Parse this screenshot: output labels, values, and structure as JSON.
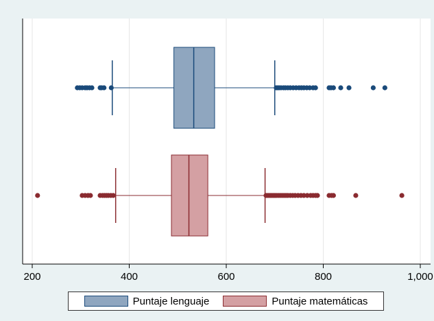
{
  "chart_data": {
    "type": "boxplot",
    "orientation": "horizontal",
    "title": "",
    "xlabel": "",
    "ylabel": "",
    "xlim": [
      180,
      1010
    ],
    "xticks": [
      200,
      400,
      600,
      800,
      1000
    ],
    "xtick_labels": [
      "200",
      "400",
      "600",
      "800",
      "1,000"
    ],
    "grid": "vertical",
    "legend_position": "bottom",
    "series": [
      {
        "name": "Puntaje lenguaje",
        "fill": "#8fa6bf",
        "stroke": "#1a4a7a",
        "whisker_low": 365,
        "q1": 492,
        "median": 533,
        "q3": 576,
        "whisker_high": 700,
        "outliers": [
          293,
          298,
          303,
          309,
          313,
          318,
          323,
          340,
          343,
          348,
          363,
          703,
          706,
          709,
          713,
          718,
          722,
          727,
          732,
          738,
          744,
          750,
          755,
          760,
          766,
          772,
          779,
          784,
          812,
          816,
          821,
          836,
          853,
          903,
          927
        ]
      },
      {
        "name": "Puntaje matemáticas",
        "fill": "#d4a0a3",
        "stroke": "#8a2b30",
        "whisker_low": 372,
        "q1": 487,
        "median": 523,
        "q3": 562,
        "whisker_high": 680,
        "outliers": [
          211,
          303,
          309,
          315,
          320,
          340,
          345,
          349,
          353,
          357,
          362,
          367,
          682,
          685,
          688,
          691,
          694,
          697,
          700,
          703,
          707,
          711,
          715,
          719,
          723,
          727,
          732,
          737,
          742,
          748,
          754,
          760,
          767,
          774,
          779,
          784,
          788,
          812,
          817,
          821,
          867,
          962
        ]
      }
    ]
  }
}
